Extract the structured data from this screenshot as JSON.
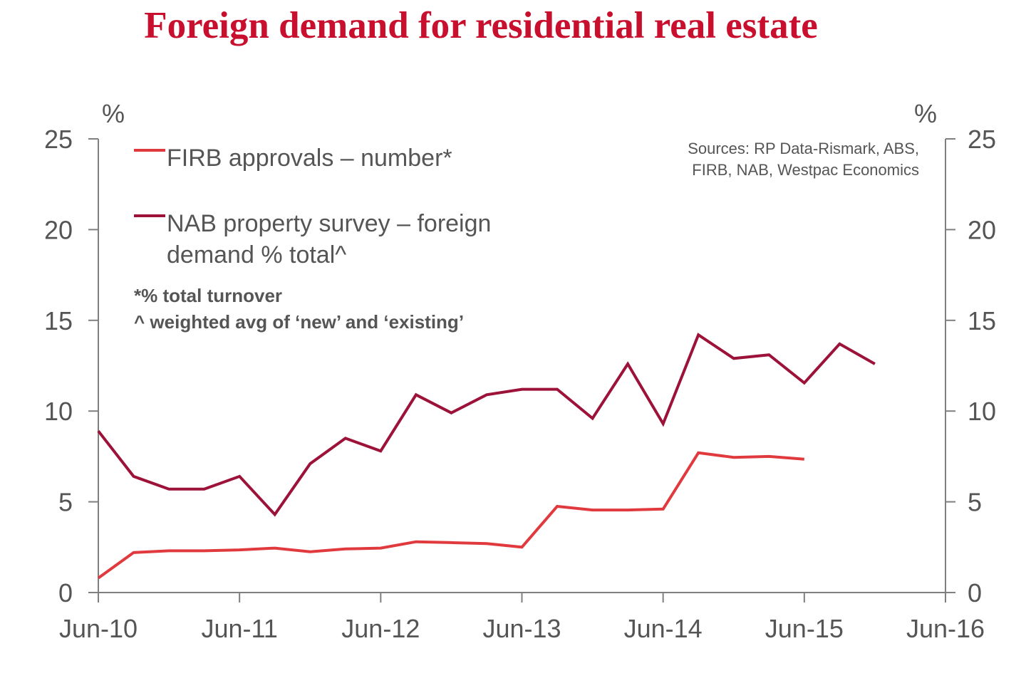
{
  "chart_data": {
    "type": "line",
    "title": "Foreign demand for residential real estate",
    "y_unit_left": "%",
    "y_unit_right": "%",
    "ylim": [
      0,
      25
    ],
    "yticks": [
      0,
      5,
      10,
      15,
      20,
      25
    ],
    "xlim": [
      "Jun-10",
      "Jun-16"
    ],
    "xticks": [
      "Jun-10",
      "Jun-11",
      "Jun-12",
      "Jun-13",
      "Jun-14",
      "Jun-15",
      "Jun-16"
    ],
    "grid": false,
    "legend_position": "top-left",
    "sources": [
      "Sources: RP Data-Rismark, ABS,",
      "FIRB, NAB, Westpac Economics"
    ],
    "notes": [
      "*% total turnover",
      "^ weighted avg of ‘new’ and ‘existing’"
    ],
    "series": [
      {
        "name": "FIRB approvals – number*",
        "name_lines": [
          "FIRB approvals – number*"
        ],
        "color": "#e03a3e",
        "x": [
          "Jun-10",
          "Sep-10",
          "Dec-10",
          "Mar-11",
          "Jun-11",
          "Sep-11",
          "Dec-11",
          "Mar-12",
          "Jun-12",
          "Sep-12",
          "Dec-12",
          "Mar-13",
          "Jun-13",
          "Sep-13",
          "Dec-13",
          "Mar-14",
          "Jun-14",
          "Sep-14",
          "Dec-14",
          "Mar-15",
          "Jun-15"
        ],
        "values": [
          0.8,
          2.2,
          2.3,
          2.3,
          2.35,
          2.45,
          2.25,
          2.4,
          2.45,
          2.8,
          2.75,
          2.7,
          2.5,
          4.75,
          4.55,
          4.55,
          4.6,
          7.7,
          7.45,
          7.5,
          7.35
        ]
      },
      {
        "name": "NAB property survey – foreign demand % total^",
        "name_lines": [
          "NAB property survey – foreign",
          "demand % total^"
        ],
        "color": "#9c1239",
        "x": [
          "Jun-10",
          "Sep-10",
          "Dec-10",
          "Mar-11",
          "Jun-11",
          "Sep-11",
          "Dec-11",
          "Mar-12",
          "Jun-12",
          "Sep-12",
          "Dec-12",
          "Mar-13",
          "Jun-13",
          "Sep-13",
          "Dec-13",
          "Mar-14",
          "Jun-14",
          "Sep-14",
          "Dec-14",
          "Mar-15",
          "Jun-15",
          "Sep-15",
          "Dec-15"
        ],
        "values": [
          8.9,
          6.4,
          5.7,
          5.7,
          6.4,
          4.3,
          7.1,
          8.5,
          7.8,
          10.9,
          9.9,
          10.9,
          11.2,
          11.2,
          9.6,
          12.6,
          9.3,
          14.2,
          12.9,
          13.1,
          11.55,
          13.7,
          12.6
        ]
      }
    ]
  }
}
